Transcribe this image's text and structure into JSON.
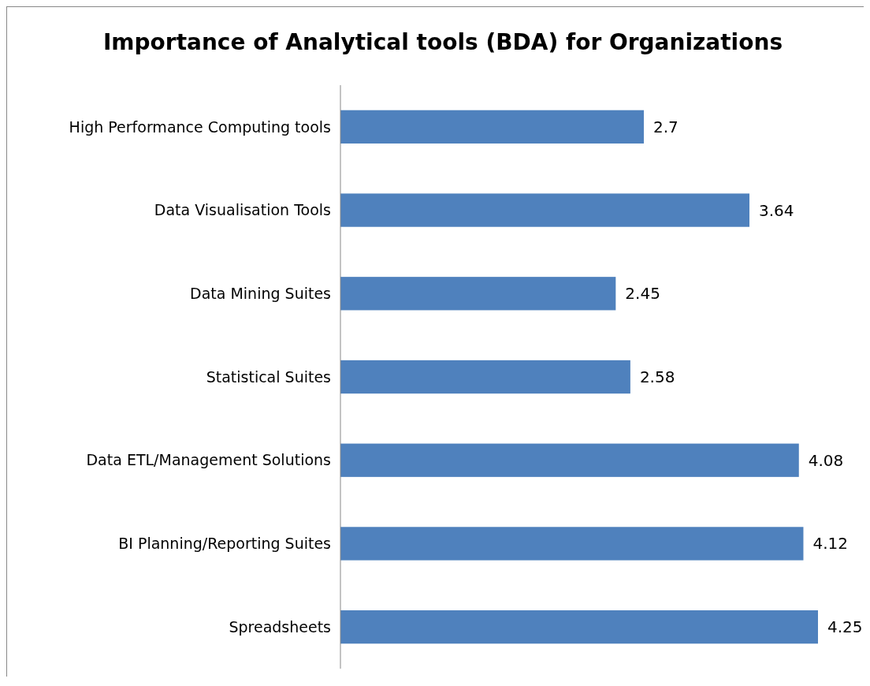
{
  "chart_data": {
    "type": "bar",
    "orientation": "horizontal",
    "title": "Importance of Analytical tools (BDA) for Organizations",
    "categories": [
      "High Performance Computing tools",
      "Data Visualisation Tools",
      "Data Mining Suites",
      "Statistical Suites",
      "Data ETL/Management Solutions",
      "BI Planning/Reporting Suites",
      "Spreadsheets"
    ],
    "values": [
      2.7,
      3.64,
      2.45,
      2.58,
      4.08,
      4.12,
      4.25
    ],
    "color": "#4f81bd",
    "data_labels": true
  }
}
